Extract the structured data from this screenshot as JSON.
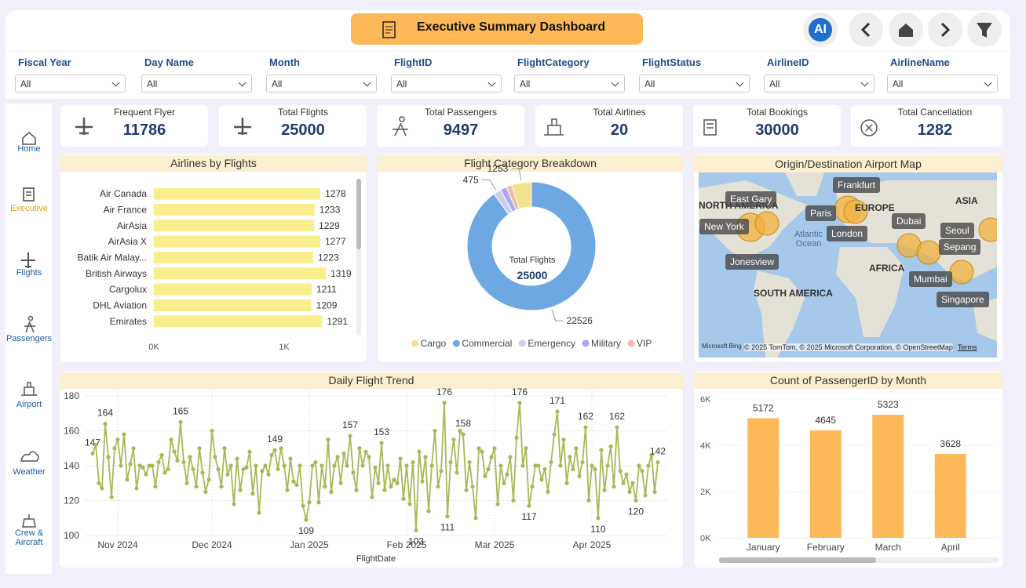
{
  "header": {
    "title": "Executive Summary Dashboard",
    "ai_button": "AI"
  },
  "filters": [
    {
      "label": "Fiscal Year",
      "value": "All"
    },
    {
      "label": "Day Name",
      "value": "All"
    },
    {
      "label": "Month",
      "value": "All"
    },
    {
      "label": "FlightID",
      "value": "All"
    },
    {
      "label": "FlightCategory",
      "value": "All"
    },
    {
      "label": "FlightStatus",
      "value": "All"
    },
    {
      "label": "AirlineID",
      "value": "All"
    },
    {
      "label": "AirlineName",
      "value": "All"
    }
  ],
  "nav": [
    {
      "label": "Home",
      "active": false
    },
    {
      "label": "Executive",
      "active": true
    },
    {
      "label": "Flights",
      "active": false
    },
    {
      "label": "Passengers",
      "active": false
    },
    {
      "label": "Airport",
      "active": false
    },
    {
      "label": "Weather",
      "active": false
    },
    {
      "label": "Crew & Aircraft",
      "active": false
    }
  ],
  "kpis": [
    {
      "label": "Frequent Flyer",
      "value": 11786
    },
    {
      "label": "Total Flights",
      "value": 25000
    },
    {
      "label": "Total Passengers",
      "value": 9497
    },
    {
      "label": "Total Airlines",
      "value": 20
    },
    {
      "label": "Total Bookings",
      "value": 30000
    },
    {
      "label": "Total Cancellation",
      "value": 1282
    }
  ],
  "map": {
    "title": "Origin/Destination Airport Map",
    "regions": [
      "NORTH AMERICA",
      "EUROPE",
      "ASIA",
      "AFRICA",
      "SOUTH AMERICA",
      "Atlantic Ocean"
    ],
    "cities": [
      "East Gary",
      "New York",
      "Jonesview",
      "Frankfurt",
      "Paris",
      "London",
      "Dubai",
      "Seoul",
      "Sepang",
      "Mumbai",
      "Singapore"
    ],
    "logo": "Microsoft Bing",
    "attribution": "© 2025 TomTom, © 2025 Microsoft Corporation, © OpenStreetMap",
    "terms": "Terms"
  },
  "chart_data": [
    {
      "type": "bar",
      "orientation": "horizontal",
      "title": "Airlines by Flights",
      "categories": [
        "Air Canada",
        "Air France",
        "AirAsia",
        "AirAsia X",
        "Batik Air Malay...",
        "British Airways",
        "Cargolux",
        "DHL Aviation",
        "Emirates"
      ],
      "values": [
        1278,
        1233,
        1229,
        1277,
        1223,
        1319,
        1211,
        1209,
        1291
      ],
      "color": "#f8ee8c",
      "xlim": [
        0,
        1530
      ],
      "xticks": [
        {
          "value": 0,
          "label": "0K"
        },
        {
          "value": 1000,
          "label": "1K"
        }
      ],
      "grid": false
    },
    {
      "type": "pie",
      "title": "Flight Category Breakdown",
      "center_label": "Total Flights",
      "center_value": 25000,
      "categories": [
        "Cargo",
        "Commercial",
        "Emergency",
        "Military",
        "VIP"
      ],
      "values": [
        1253,
        22526,
        475,
        400,
        346
      ],
      "value_labels": [
        "1253",
        "22526",
        "475",
        null,
        null
      ],
      "colors": [
        "#f2e28f",
        "#6ea8e3",
        "#cdcdf0",
        "#a9a9ee",
        "#f3bba6"
      ],
      "legend": "bottom"
    },
    {
      "type": "line",
      "title": "Daily Flight Trend",
      "x_label": "FlightDate",
      "color": "#a7b957",
      "ylim": [
        100,
        180
      ],
      "yticks": [
        100,
        120,
        140,
        160,
        180
      ],
      "xlim": [
        -2.5,
        183
      ],
      "xticks": [
        {
          "value": 8,
          "label": "Nov 2024"
        },
        {
          "value": 38,
          "label": "Dec 2024"
        },
        {
          "value": 69,
          "label": "Jan 2025"
        },
        {
          "value": 100,
          "label": "Feb 2025"
        },
        {
          "value": 128,
          "label": "Mar 2025"
        },
        {
          "value": 159,
          "label": "Apr 2025"
        }
      ],
      "grid": true,
      "values": [
        147,
        152,
        130,
        127,
        164,
        145,
        122,
        150,
        155,
        140,
        158,
        132,
        141,
        150,
        127,
        140,
        139,
        135,
        140,
        140,
        128,
        142,
        146,
        136,
        138,
        155,
        148,
        143,
        165,
        142,
        130,
        145,
        138,
        128,
        150,
        136,
        125,
        132,
        160,
        145,
        138,
        128,
        150,
        135,
        140,
        118,
        144,
        126,
        138,
        139,
        148,
        124,
        140,
        113,
        137,
        140,
        135,
        146,
        149,
        138,
        150,
        140,
        126,
        144,
        131,
        129,
        140,
        117,
        109,
        119,
        140,
        142,
        119,
        140,
        128,
        155,
        125,
        140,
        145,
        130,
        147,
        140,
        157,
        136,
        126,
        150,
        140,
        148,
        145,
        122,
        139,
        130,
        153,
        126,
        140,
        128,
        132,
        130,
        144,
        121,
        140,
        118,
        142,
        103,
        148,
        131,
        145,
        114,
        140,
        160,
        128,
        137,
        176,
        111,
        142,
        155,
        136,
        160,
        158,
        126,
        142,
        128,
        110,
        150,
        148,
        134,
        138,
        145,
        150,
        118,
        140,
        130,
        135,
        145,
        120,
        156,
        176,
        140,
        150,
        117,
        128,
        140,
        140,
        132,
        138,
        125,
        142,
        158,
        171,
        140,
        155,
        130,
        145,
        138,
        150,
        134,
        142,
        162,
        120,
        140,
        138,
        110,
        149,
        126,
        140,
        151,
        128,
        162,
        137,
        130,
        135,
        125,
        130,
        120,
        140,
        137,
        123,
        140,
        146,
        125,
        142
      ],
      "value_labels": [
        "147",
        null,
        null,
        null,
        "164",
        null,
        null,
        null,
        null,
        null,
        null,
        null,
        null,
        null,
        null,
        null,
        null,
        null,
        null,
        null,
        null,
        null,
        null,
        null,
        null,
        null,
        null,
        null,
        "165",
        null,
        null,
        null,
        null,
        null,
        null,
        null,
        null,
        null,
        null,
        null,
        null,
        null,
        null,
        null,
        null,
        null,
        null,
        null,
        null,
        null,
        null,
        null,
        null,
        null,
        null,
        null,
        null,
        null,
        "149",
        null,
        null,
        null,
        null,
        null,
        null,
        null,
        null,
        null,
        "109",
        null,
        null,
        null,
        null,
        null,
        null,
        null,
        null,
        null,
        null,
        null,
        null,
        null,
        "157",
        null,
        null,
        null,
        null,
        null,
        null,
        null,
        null,
        null,
        "153",
        null,
        null,
        null,
        null,
        null,
        null,
        null,
        null,
        null,
        null,
        "103",
        null,
        null,
        null,
        null,
        null,
        null,
        null,
        null,
        "176",
        "111",
        null,
        null,
        null,
        null,
        "158",
        null,
        null,
        null,
        null,
        null,
        null,
        null,
        null,
        null,
        null,
        null,
        null,
        null,
        null,
        null,
        null,
        null,
        "176",
        null,
        null,
        "117",
        null,
        null,
        null,
        null,
        null,
        null,
        null,
        null,
        "171",
        null,
        null,
        null,
        null,
        null,
        null,
        null,
        null,
        "162",
        null,
        null,
        null,
        "110",
        null,
        null,
        null,
        null,
        null,
        "162",
        null,
        null,
        null,
        null,
        null,
        "120",
        null,
        null,
        null,
        null,
        null,
        null,
        "142"
      ]
    },
    {
      "type": "bar",
      "orientation": "vertical",
      "title": "Count of PassengerID by Month",
      "categories": [
        "January",
        "February",
        "March",
        "April"
      ],
      "values": [
        5172,
        4645,
        5323,
        3628
      ],
      "color": "#fdb858",
      "ylim": [
        0,
        6000
      ],
      "yticks": [
        {
          "value": 0,
          "label": "0K"
        },
        {
          "value": 2000,
          "label": "2K"
        },
        {
          "value": 4000,
          "label": "4K"
        },
        {
          "value": 6000,
          "label": "6K"
        }
      ],
      "grid": true
    }
  ]
}
